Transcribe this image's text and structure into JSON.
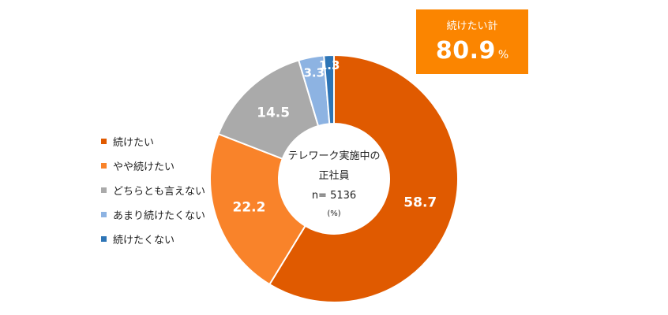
{
  "chart_data": {
    "type": "pie",
    "categories": [
      "続けたい",
      "やや続けたい",
      "どちらとも言えない",
      "あまり続けたくない",
      "続けたくない"
    ],
    "values": [
      58.7,
      22.2,
      14.5,
      3.3,
      1.3
    ],
    "colors": [
      "#e05a00",
      "#f9832a",
      "#aaaaaa",
      "#8db3e2",
      "#2e75b6"
    ],
    "center_label": {
      "line1": "テレワーク実施中の",
      "line2": "正社員",
      "n_text": "n= 5136",
      "unit": "(%)"
    },
    "legend_position": "left",
    "summary": {
      "label": "続けたい計",
      "value": "80.9",
      "unit": "%",
      "color": "#fb8500"
    }
  }
}
